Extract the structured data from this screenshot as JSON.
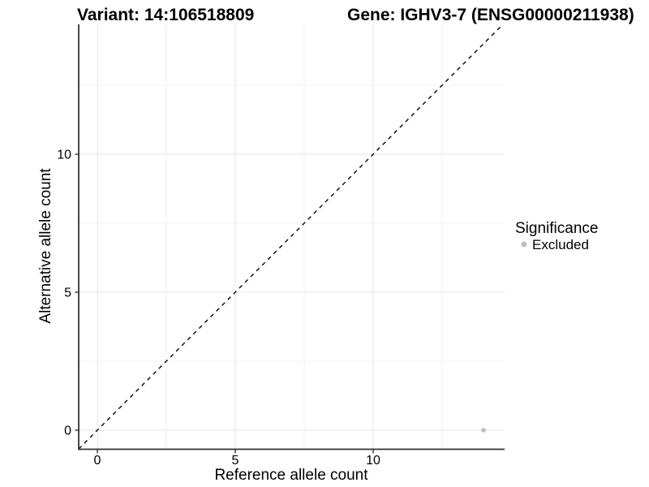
{
  "header": {
    "variant_title": "Variant: 14:106518809",
    "gene_title": "Gene: IGHV3-7 (ENSG00000211938)"
  },
  "chart_data": {
    "type": "scatter",
    "title_left": "Variant: 14:106518809",
    "title_right": "Gene: IGHV3-7 (ENSG00000211938)",
    "xlabel": "Reference allele count",
    "ylabel": "Alternative allele count",
    "xlim": [
      -0.68,
      14.7
    ],
    "ylim": [
      -0.68,
      14.7
    ],
    "x_ticks": [
      0,
      5,
      10
    ],
    "y_ticks": [
      0,
      5,
      10
    ],
    "x_tick_labels": [
      "0",
      "5",
      "10"
    ],
    "y_tick_labels": [
      "0",
      "5",
      "10"
    ],
    "x_minor_ticks": [
      2.5,
      7.5,
      12.5
    ],
    "y_minor_ticks": [
      2.5,
      7.5,
      12.5
    ],
    "grid": true,
    "series": [
      {
        "name": "Excluded",
        "color": "#bebebe",
        "points": [
          {
            "x": 14,
            "y": 0
          }
        ]
      }
    ],
    "reference_line": {
      "kind": "identity",
      "style": "dashed",
      "color": "#000000"
    },
    "legend": {
      "title": "Significance",
      "position": "right",
      "items": [
        {
          "label": "Excluded",
          "color": "#bebebe"
        }
      ]
    }
  },
  "colors": {
    "background": "#ffffff",
    "grid_major": "#e6e6e6",
    "grid_minor": "#f0f0f0",
    "axis_line": "#333333",
    "point": "#bebebe",
    "text": "#000000"
  }
}
